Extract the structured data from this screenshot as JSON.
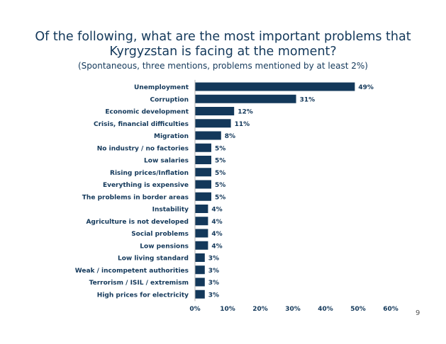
{
  "title_line1": "Of the following, what are the most important problems that",
  "title_line2": "Kyrgyzstan is facing at the moment?",
  "subtitle": "(Spontaneous, three mentions, problems mentioned by at least 2%)",
  "page_number": "9",
  "colors": {
    "bar": "#13385a",
    "text": "#13385a"
  },
  "chart_data": {
    "type": "bar",
    "orientation": "horizontal",
    "categories": [
      "Unemployment",
      "Corruption",
      "Economic development",
      "Crisis, financial difficulties",
      "Migration",
      "No industry / no factories",
      "Low salaries",
      "Rising prices/Inflation",
      "Everything is expensive",
      "The problems in border areas",
      "Instability",
      "Agriculture is not developed",
      "Social problems",
      "Low pensions",
      "Low living standard",
      "Weak / incompetent authorities",
      "Terrorism / ISIL / extremism",
      "High prices for electricity"
    ],
    "values": [
      49,
      31,
      12,
      11,
      8,
      5,
      5,
      5,
      5,
      5,
      4,
      4,
      4,
      4,
      3,
      3,
      3,
      3
    ],
    "value_labels": [
      "49%",
      "31%",
      "12%",
      "11%",
      "8%",
      "5%",
      "5%",
      "5%",
      "5%",
      "5%",
      "4%",
      "4%",
      "4%",
      "4%",
      "3%",
      "3%",
      "3%",
      "3%"
    ],
    "xlim": [
      0,
      60
    ],
    "xticks": [
      0,
      10,
      20,
      30,
      40,
      50,
      60
    ],
    "xtick_labels": [
      "0%",
      "10%",
      "20%",
      "30%",
      "40%",
      "50%",
      "60%"
    ],
    "grid": false,
    "legend": "none"
  }
}
